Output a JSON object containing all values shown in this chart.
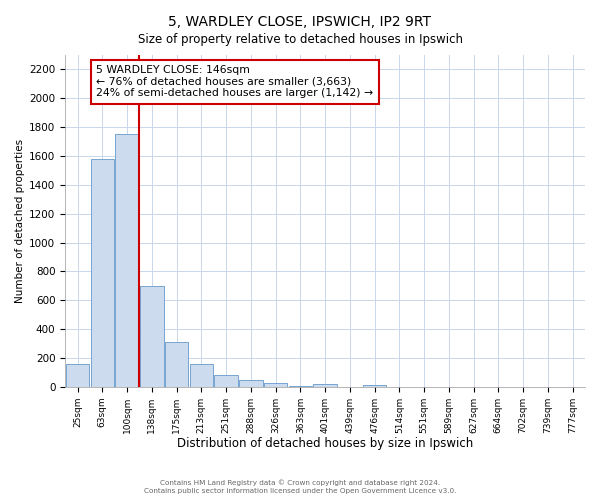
{
  "title": "5, WARDLEY CLOSE, IPSWICH, IP2 9RT",
  "subtitle": "Size of property relative to detached houses in Ipswich",
  "xlabel": "Distribution of detached houses by size in Ipswich",
  "ylabel": "Number of detached properties",
  "bar_labels": [
    "25sqm",
    "63sqm",
    "100sqm",
    "138sqm",
    "175sqm",
    "213sqm",
    "251sqm",
    "288sqm",
    "326sqm",
    "363sqm",
    "401sqm",
    "439sqm",
    "476sqm",
    "514sqm",
    "551sqm",
    "589sqm",
    "627sqm",
    "664sqm",
    "702sqm",
    "739sqm",
    "777sqm"
  ],
  "bar_values": [
    160,
    1580,
    1750,
    700,
    310,
    155,
    80,
    50,
    25,
    5,
    20,
    0,
    15,
    0,
    0,
    0,
    0,
    0,
    0,
    0,
    0
  ],
  "bar_color": "#ccdcee",
  "bar_edge_color": "#6699cc",
  "ylim": [
    0,
    2300
  ],
  "yticks": [
    0,
    200,
    400,
    600,
    800,
    1000,
    1200,
    1400,
    1600,
    1800,
    2000,
    2200
  ],
  "vline_color": "#cc0000",
  "annotation_text": "5 WARDLEY CLOSE: 146sqm\n← 76% of detached houses are smaller (3,663)\n24% of semi-detached houses are larger (1,142) →",
  "annotation_box_color": "#ffffff",
  "annotation_box_edge": "#cc0000",
  "footer_line1": "Contains HM Land Registry data © Crown copyright and database right 2024.",
  "footer_line2": "Contains public sector information licensed under the Open Government Licence v3.0.",
  "bg_color": "#ffffff",
  "grid_color": "#c8d8eb"
}
